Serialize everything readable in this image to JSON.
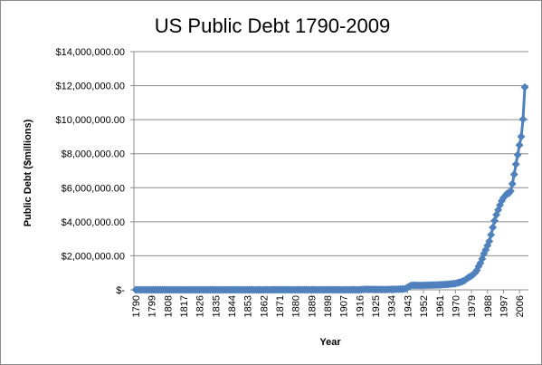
{
  "chart_data": {
    "type": "line",
    "title": "US Public Debt 1790-2009",
    "xlabel": "Year",
    "ylabel": "Public Debt ($millions)",
    "ylim": [
      0,
      14000000
    ],
    "yticks": [
      "$-",
      "$2,000,000.00",
      "$4,000,000.00",
      "$6,000,000.00",
      "$8,000,000.00",
      "$10,000,000.00",
      "$12,000,000.00",
      "$14,000,000.00"
    ],
    "xtick_labels": [
      "1790",
      "1799",
      "1808",
      "1817",
      "1826",
      "1835",
      "1844",
      "1853",
      "1862",
      "1871",
      "1880",
      "1889",
      "1898",
      "1907",
      "1916",
      "1925",
      "1934",
      "1943",
      "1952",
      "1961",
      "1970",
      "1979",
      "1988",
      "1997",
      "2006"
    ],
    "x_range": [
      1790,
      2009
    ],
    "grid": "horizontal",
    "legend": "none",
    "series_color": "#4f81bd",
    "marker": "diamond",
    "series": [
      {
        "points": [
          [
            1790,
            75
          ],
          [
            1800,
            83
          ],
          [
            1810,
            53
          ],
          [
            1816,
            127
          ],
          [
            1820,
            91
          ],
          [
            1830,
            49
          ],
          [
            1835,
            0
          ],
          [
            1840,
            4
          ],
          [
            1850,
            63
          ],
          [
            1860,
            65
          ],
          [
            1863,
            1120
          ],
          [
            1866,
            2756
          ],
          [
            1870,
            2436
          ],
          [
            1880,
            2091
          ],
          [
            1890,
            1122
          ],
          [
            1900,
            1263
          ],
          [
            1910,
            1147
          ],
          [
            1916,
            1225
          ],
          [
            1919,
            25482
          ],
          [
            1930,
            16185
          ],
          [
            1935,
            28701
          ],
          [
            1940,
            42968
          ],
          [
            1941,
            48961
          ],
          [
            1942,
            72422
          ],
          [
            1943,
            136696
          ],
          [
            1944,
            201003
          ],
          [
            1945,
            258682
          ],
          [
            1946,
            269422
          ],
          [
            1950,
            257357
          ],
          [
            1955,
            274374
          ],
          [
            1960,
            286331
          ],
          [
            1965,
            317274
          ],
          [
            1970,
            370919
          ],
          [
            1973,
            458142
          ],
          [
            1975,
            541925
          ],
          [
            1977,
            706398
          ],
          [
            1979,
            826519
          ],
          [
            1980,
            907701
          ],
          [
            1981,
            997855
          ],
          [
            1982,
            1142034
          ],
          [
            1983,
            1377210
          ],
          [
            1984,
            1572266
          ],
          [
            1985,
            1823103
          ],
          [
            1986,
            2125302
          ],
          [
            1987,
            2350277
          ],
          [
            1988,
            2602338
          ],
          [
            1989,
            2857430
          ],
          [
            1990,
            3233313
          ],
          [
            1991,
            3665303
          ],
          [
            1992,
            4064621
          ],
          [
            1993,
            4411489
          ],
          [
            1994,
            4692750
          ],
          [
            1995,
            4973983
          ],
          [
            1996,
            5224811
          ],
          [
            1997,
            5413146
          ],
          [
            1998,
            5526193
          ],
          [
            1999,
            5656270
          ],
          [
            2000,
            5674178
          ],
          [
            2001,
            5807463
          ],
          [
            2002,
            6228236
          ],
          [
            2003,
            6783231
          ],
          [
            2004,
            7379053
          ],
          [
            2005,
            7932710
          ],
          [
            2006,
            8506974
          ],
          [
            2007,
            9007653
          ],
          [
            2008,
            10024724
          ],
          [
            2009,
            11909829
          ]
        ]
      }
    ]
  }
}
